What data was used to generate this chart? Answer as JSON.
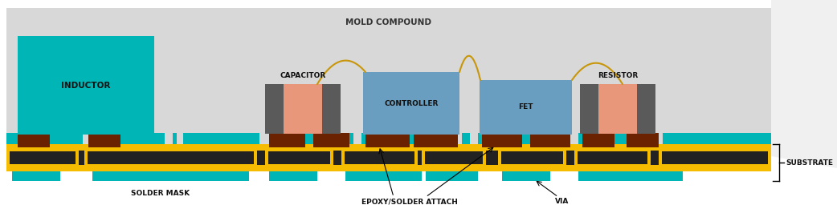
{
  "fig_width": 10.42,
  "fig_height": 2.61,
  "dpi": 100,
  "bg_outer": "#f0f0f0",
  "bg_mold": "#d8d8d8",
  "bg_white": "#ffffff",
  "colors": {
    "teal": "#00b5b5",
    "gold": "#f5bc00",
    "black": "#222222",
    "dark_brown": "#6b2200",
    "gray_dark": "#5a5a5a",
    "salmon": "#e8977a",
    "steel_blue": "#6a9ec0",
    "wire": "#c8960a"
  },
  "labels": {
    "mold_compound": "MOLD COMPOUND",
    "inductor": "INDUCTOR",
    "capacitor": "CAPACITOR",
    "controller": "CONTROLLER",
    "fet": "FET",
    "resistor": "RESISTOR",
    "solder_mask": "SOLDER MASK",
    "epoxy": "EPOXY/SOLDER ATTACH",
    "via": "VIA",
    "substrate": "SUBSTRATE"
  },
  "label_fontsize": 6.5,
  "title_fontsize": 7.5
}
